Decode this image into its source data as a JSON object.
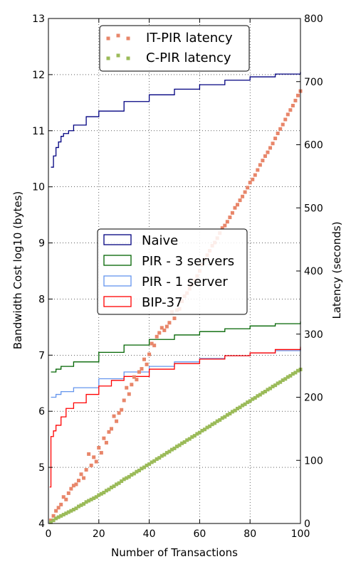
{
  "chart_data": {
    "type": "line",
    "xlabel": "Number of Transactions",
    "ylabel": "Bandwidth Cost log10 (bytes)",
    "ylabel_right": "Latency (seconds)",
    "xlim": [
      0,
      100
    ],
    "ylim": [
      4,
      13
    ],
    "ylim_right": [
      0,
      800
    ],
    "x_ticks": [
      "0",
      "20",
      "40",
      "60",
      "80",
      "100"
    ],
    "y_ticks": [
      "4",
      "5",
      "6",
      "7",
      "8",
      "9",
      "10",
      "11",
      "12",
      "13"
    ],
    "y_right_ticks": [
      "0",
      "100",
      "200",
      "300",
      "400",
      "500",
      "600",
      "700",
      "800"
    ],
    "grid": true,
    "legends": {
      "upper": {
        "position": "upper-center",
        "entries": [
          "IT-PIR latency",
          "C-PIR latency"
        ]
      },
      "middle": {
        "position": "center-left",
        "entries": [
          "Naive",
          "PIR - 3 servers",
          "PIR - 1 server",
          "BIP-37"
        ]
      }
    },
    "colors": {
      "naive": "#000080",
      "pir3": "#006400",
      "pir1": "#6495ED",
      "bip37": "#FF0000",
      "itpir": "#E8866A",
      "cpir": "#9BBB59"
    },
    "series": [
      {
        "name": "Naive",
        "axis": "left",
        "style": "step",
        "color_key": "naive",
        "x": [
          1,
          2,
          3,
          4,
          5,
          6,
          8,
          10,
          15,
          20,
          30,
          40,
          50,
          60,
          70,
          80,
          90,
          100
        ],
        "values": [
          10.35,
          10.55,
          10.7,
          10.8,
          10.9,
          10.95,
          11.0,
          11.1,
          11.25,
          11.35,
          11.52,
          11.64,
          11.74,
          11.82,
          11.9,
          11.96,
          12.01,
          12.05
        ]
      },
      {
        "name": "PIR - 3 servers",
        "axis": "left",
        "style": "step",
        "color_key": "pir3",
        "x": [
          1,
          3,
          5,
          10,
          20,
          30,
          40,
          50,
          60,
          70,
          80,
          90,
          100
        ],
        "values": [
          6.7,
          6.75,
          6.8,
          6.88,
          7.05,
          7.18,
          7.28,
          7.36,
          7.42,
          7.47,
          7.52,
          7.56,
          7.6
        ]
      },
      {
        "name": "PIR - 1 server",
        "axis": "left",
        "style": "step",
        "color_key": "pir1",
        "x": [
          1,
          3,
          5,
          10,
          20,
          30,
          40,
          50,
          60,
          70,
          80,
          90,
          100
        ],
        "values": [
          6.25,
          6.3,
          6.35,
          6.42,
          6.58,
          6.7,
          6.8,
          6.88,
          6.94,
          6.99,
          7.04,
          7.08,
          7.12
        ]
      },
      {
        "name": "BIP-37",
        "axis": "left",
        "style": "step",
        "color_key": "bip37",
        "x": [
          0.5,
          1,
          2,
          3,
          5,
          7,
          10,
          15,
          20,
          25,
          30,
          40,
          50,
          60,
          70,
          80,
          90,
          100
        ],
        "values": [
          4.65,
          5.55,
          5.65,
          5.75,
          5.9,
          6.05,
          6.15,
          6.3,
          6.45,
          6.55,
          6.62,
          6.75,
          6.85,
          6.93,
          6.99,
          7.04,
          7.1,
          7.15
        ]
      },
      {
        "name": "IT-PIR latency",
        "axis": "right",
        "style": "scatter",
        "color_key": "itpir",
        "x": [
          1,
          2,
          3,
          4,
          5,
          6,
          7,
          8,
          9,
          10,
          11,
          12,
          13,
          14,
          15,
          16,
          17,
          18,
          19,
          20,
          21,
          22,
          23,
          24,
          25,
          26,
          27,
          28,
          29,
          30,
          31,
          32,
          33,
          34,
          35,
          36,
          37,
          38,
          39,
          40,
          41,
          42,
          43,
          44,
          45,
          46,
          47,
          48,
          49,
          50,
          51,
          52,
          53,
          54,
          55,
          56,
          57,
          58,
          59,
          60,
          61,
          62,
          63,
          64,
          65,
          66,
          67,
          68,
          69,
          70,
          71,
          72,
          73,
          74,
          75,
          76,
          77,
          78,
          79,
          80,
          81,
          82,
          83,
          84,
          85,
          86,
          87,
          88,
          89,
          90,
          91,
          92,
          93,
          94,
          95,
          96,
          97,
          98,
          99,
          100
        ],
        "values": [
          5,
          12,
          20,
          25,
          30,
          42,
          38,
          48,
          55,
          60,
          62,
          68,
          78,
          72,
          85,
          110,
          92,
          105,
          98,
          120,
          112,
          135,
          128,
          145,
          150,
          170,
          162,
          175,
          180,
          195,
          215,
          205,
          220,
          232,
          228,
          240,
          245,
          260,
          252,
          268,
          285,
          282,
          296,
          302,
          310,
          306,
          312,
          318,
          335,
          325,
          338,
          340,
          352,
          360,
          365,
          372,
          378,
          385,
          392,
          400,
          410,
          418,
          425,
          432,
          440,
          445,
          452,
          460,
          468,
          472,
          478,
          485,
          492,
          500,
          505,
          512,
          518,
          525,
          532,
          540,
          545,
          552,
          560,
          568,
          575,
          582,
          588,
          595,
          602,
          610,
          618,
          625,
          632,
          640,
          648,
          655,
          662,
          670,
          678,
          685
        ]
      },
      {
        "name": "C-PIR latency",
        "axis": "right",
        "style": "scatter",
        "color_key": "cpir",
        "x": [
          1,
          2,
          3,
          4,
          5,
          6,
          7,
          8,
          9,
          10,
          11,
          12,
          13,
          14,
          15,
          16,
          17,
          18,
          19,
          20,
          21,
          22,
          23,
          24,
          25,
          26,
          27,
          28,
          29,
          30,
          31,
          32,
          33,
          34,
          35,
          36,
          37,
          38,
          39,
          40,
          41,
          42,
          43,
          44,
          45,
          46,
          47,
          48,
          49,
          50,
          51,
          52,
          53,
          54,
          55,
          56,
          57,
          58,
          59,
          60,
          61,
          62,
          63,
          64,
          65,
          66,
          67,
          68,
          69,
          70,
          71,
          72,
          73,
          74,
          75,
          76,
          77,
          78,
          79,
          80,
          81,
          82,
          83,
          84,
          85,
          86,
          87,
          88,
          89,
          90,
          91,
          92,
          93,
          94,
          95,
          96,
          97,
          98,
          99,
          100
        ],
        "values": [
          2,
          5,
          8,
          10,
          12,
          14,
          16,
          18,
          20,
          22,
          24,
          27,
          29,
          31,
          34,
          36,
          38,
          40,
          42,
          45,
          47,
          49,
          52,
          54,
          57,
          59,
          62,
          64,
          67,
          70,
          72,
          74,
          77,
          79,
          82,
          84,
          87,
          89,
          92,
          94,
          97,
          99,
          102,
          104,
          107,
          109,
          112,
          114,
          117,
          119,
          122,
          124,
          127,
          129,
          132,
          134,
          137,
          139,
          142,
          144,
          147,
          149,
          152,
          154,
          157,
          159,
          162,
          164,
          167,
          169,
          172,
          174,
          177,
          179,
          182,
          184,
          187,
          189,
          192,
          194,
          197,
          199,
          202,
          204,
          207,
          209,
          212,
          214,
          217,
          219,
          222,
          224,
          227,
          229,
          232,
          234,
          237,
          239,
          242,
          244
        ]
      }
    ]
  }
}
